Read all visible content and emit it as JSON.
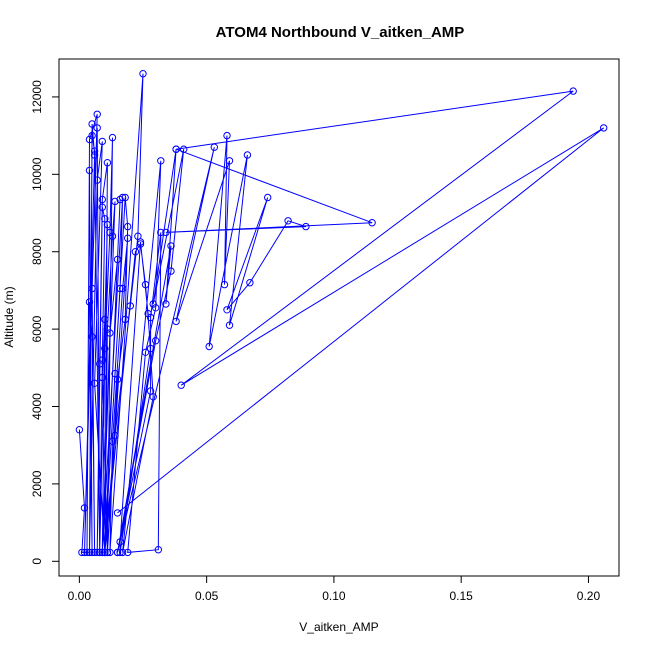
{
  "chart_data": {
    "type": "line",
    "title": "ATOM4 Northbound V_aitken_AMP",
    "xlabel": "V_aitken_AMP",
    "ylabel": "Altitude (m)",
    "xlim": [
      -0.008,
      0.212
    ],
    "ylim": [
      -380,
      12980
    ],
    "x_ticks": [
      0.0,
      0.05,
      0.1,
      0.15,
      0.2
    ],
    "x_tick_labels": [
      "0.00",
      "0.05",
      "0.10",
      "0.15",
      "0.20"
    ],
    "y_ticks": [
      0,
      2000,
      4000,
      6000,
      8000,
      10000,
      12000
    ],
    "y_tick_labels": [
      "0",
      "2000",
      "4000",
      "6000",
      "8000",
      "10000",
      "12000"
    ],
    "series_color": "#0000ff",
    "marker": "open-circle",
    "grid": false,
    "series": [
      {
        "points": [
          [
            0.0,
            3400
          ],
          [
            0.002,
            1380
          ],
          [
            0.001,
            230
          ],
          [
            0.004,
            230
          ],
          [
            0.005,
            11300
          ],
          [
            0.006,
            10500
          ],
          [
            0.002,
            230
          ],
          [
            0.007,
            11550
          ],
          [
            0.004,
            10900
          ],
          [
            0.003,
            230
          ],
          [
            0.004,
            10100
          ],
          [
            0.005,
            230
          ],
          [
            0.004,
            6700
          ],
          [
            0.005,
            5800
          ],
          [
            0.006,
            230
          ],
          [
            0.005,
            7050
          ],
          [
            0.007,
            11200
          ],
          [
            0.008,
            230
          ],
          [
            0.006,
            10600
          ],
          [
            0.005,
            11000
          ],
          [
            0.004,
            230
          ],
          [
            0.007,
            9850
          ],
          [
            0.009,
            10850
          ],
          [
            0.006,
            4600
          ],
          [
            0.01,
            230
          ],
          [
            0.011,
            10300
          ],
          [
            0.009,
            9350
          ],
          [
            0.008,
            5100
          ],
          [
            0.007,
            230
          ],
          [
            0.009,
            9150
          ],
          [
            0.01,
            8850
          ],
          [
            0.009,
            5200
          ],
          [
            0.008,
            230
          ],
          [
            0.011,
            8700
          ],
          [
            0.01,
            6250
          ],
          [
            0.009,
            4750
          ],
          [
            0.011,
            230
          ],
          [
            0.013,
            10950
          ],
          [
            0.012,
            8500
          ],
          [
            0.01,
            5500
          ],
          [
            0.009,
            230
          ],
          [
            0.014,
            9300
          ],
          [
            0.013,
            8400
          ],
          [
            0.011,
            6000
          ],
          [
            0.01,
            230
          ],
          [
            0.016,
            9350
          ],
          [
            0.015,
            7800
          ],
          [
            0.012,
            5900
          ],
          [
            0.009,
            230
          ],
          [
            0.017,
            9400
          ],
          [
            0.016,
            7050
          ],
          [
            0.014,
            4850
          ],
          [
            0.01,
            230
          ],
          [
            0.018,
            9400
          ],
          [
            0.019,
            8650
          ],
          [
            0.018,
            6250
          ],
          [
            0.015,
            4700
          ],
          [
            0.011,
            230
          ],
          [
            0.019,
            8350
          ],
          [
            0.017,
            7050
          ],
          [
            0.013,
            3100
          ],
          [
            0.012,
            230
          ],
          [
            0.025,
            12600
          ],
          [
            0.023,
            8400
          ],
          [
            0.02,
            6600
          ],
          [
            0.014,
            3250
          ],
          [
            0.01,
            230
          ],
          [
            0.022,
            8000
          ],
          [
            0.024,
            8200
          ],
          [
            0.026,
            7150
          ],
          [
            0.028,
            5500
          ],
          [
            0.016,
            230
          ],
          [
            0.016,
            500
          ],
          [
            0.024,
            8250
          ],
          [
            0.027,
            6400
          ],
          [
            0.029,
            4250
          ],
          [
            0.017,
            230
          ],
          [
            0.032,
            10350
          ],
          [
            0.03,
            6550
          ],
          [
            0.026,
            5400
          ],
          [
            0.019,
            230
          ],
          [
            0.031,
            300
          ],
          [
            0.032,
            8500
          ],
          [
            0.028,
            6300
          ],
          [
            0.028,
            4400
          ],
          [
            0.015,
            230
          ],
          [
            0.036,
            8150
          ],
          [
            0.034,
            6650
          ],
          [
            0.038,
            10650
          ],
          [
            0.029,
            6650
          ],
          [
            0.041,
            10650
          ],
          [
            0.036,
            7500
          ],
          [
            0.03,
            5700
          ],
          [
            0.015,
            230
          ],
          [
            0.053,
            10700
          ],
          [
            0.038,
            6200
          ],
          [
            0.059,
            10350
          ],
          [
            0.057,
            7150
          ],
          [
            0.058,
            11000
          ],
          [
            0.051,
            5550
          ],
          [
            0.066,
            10500
          ],
          [
            0.059,
            6100
          ],
          [
            0.074,
            9400
          ],
          [
            0.058,
            6500
          ],
          [
            0.067,
            7200
          ],
          [
            0.082,
            8800
          ],
          [
            0.089,
            8650
          ],
          [
            0.034,
            8500
          ],
          [
            0.115,
            8750
          ],
          [
            0.038,
            10650
          ],
          [
            0.194,
            12150
          ],
          [
            0.04,
            4550
          ],
          [
            0.206,
            11200
          ],
          [
            0.015,
            1250
          ]
        ]
      }
    ]
  }
}
